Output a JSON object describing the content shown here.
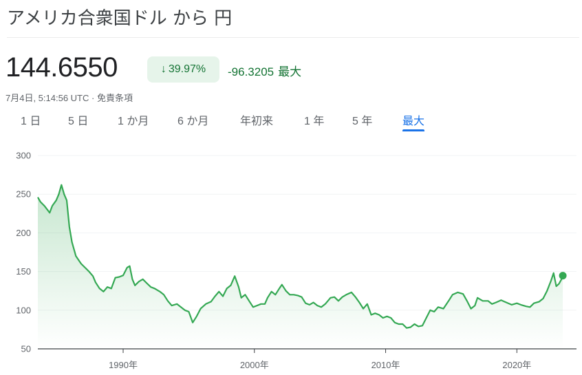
{
  "title": "アメリカ合衆国ドル から 円",
  "price": "144.6550",
  "change": {
    "arrow": "↓",
    "percent": "39.97%",
    "absolute": "-96.3205",
    "period": "最大"
  },
  "timestamp": "7月4日, 5:14:56 UTC · 免責条項",
  "tabs": [
    {
      "label": "1 日",
      "active": false
    },
    {
      "label": "5 日",
      "active": false
    },
    {
      "label": "1 か月",
      "active": false
    },
    {
      "label": "6 か月",
      "active": false
    },
    {
      "label": "年初来",
      "active": false
    },
    {
      "label": "1 年",
      "active": false
    },
    {
      "label": "5 年",
      "active": false
    },
    {
      "label": "最大",
      "active": true
    }
  ],
  "colors": {
    "line": "#34a853",
    "positive_text": "#137333",
    "badge_bg": "#e6f4ea",
    "active_tab": "#1a73e8"
  },
  "chart_data": {
    "type": "line",
    "title": "",
    "xlabel": "",
    "ylabel": "",
    "x_ticks": [
      {
        "year": 1990,
        "label": "1990年"
      },
      {
        "year": 2000,
        "label": "2000年"
      },
      {
        "year": 2010,
        "label": "2010年"
      },
      {
        "year": 2020,
        "label": "2020年"
      }
    ],
    "y_ticks": [
      300,
      250,
      200,
      150,
      100,
      50
    ],
    "xlim": [
      1983.5,
      2023.6
    ],
    "ylim": [
      50,
      300
    ],
    "grid": "horizontal",
    "series": [
      {
        "name": "",
        "points": [
          [
            1983.5,
            246
          ],
          [
            1983.7,
            240
          ],
          [
            1984.0,
            235
          ],
          [
            1984.4,
            226
          ],
          [
            1984.6,
            235
          ],
          [
            1984.9,
            242
          ],
          [
            1985.1,
            250
          ],
          [
            1985.3,
            262
          ],
          [
            1985.5,
            250
          ],
          [
            1985.7,
            242
          ],
          [
            1985.9,
            208
          ],
          [
            1986.1,
            188
          ],
          [
            1986.4,
            170
          ],
          [
            1986.8,
            160
          ],
          [
            1987.1,
            155
          ],
          [
            1987.4,
            150
          ],
          [
            1987.7,
            144
          ],
          [
            1987.9,
            136
          ],
          [
            1988.2,
            128
          ],
          [
            1988.5,
            124
          ],
          [
            1988.8,
            130
          ],
          [
            1989.1,
            128
          ],
          [
            1989.4,
            142
          ],
          [
            1989.7,
            143
          ],
          [
            1990.0,
            145
          ],
          [
            1990.3,
            155
          ],
          [
            1990.5,
            157
          ],
          [
            1990.7,
            140
          ],
          [
            1990.9,
            132
          ],
          [
            1991.2,
            137
          ],
          [
            1991.5,
            140
          ],
          [
            1991.8,
            135
          ],
          [
            1992.1,
            130
          ],
          [
            1992.4,
            128
          ],
          [
            1992.8,
            124
          ],
          [
            1993.1,
            120
          ],
          [
            1993.4,
            112
          ],
          [
            1993.7,
            106
          ],
          [
            1994.1,
            108
          ],
          [
            1994.4,
            104
          ],
          [
            1994.7,
            100
          ],
          [
            1995.0,
            98
          ],
          [
            1995.3,
            84
          ],
          [
            1995.6,
            92
          ],
          [
            1995.9,
            102
          ],
          [
            1996.3,
            108
          ],
          [
            1996.7,
            111
          ],
          [
            1997.0,
            118
          ],
          [
            1997.3,
            124
          ],
          [
            1997.6,
            118
          ],
          [
            1997.9,
            128
          ],
          [
            1998.2,
            132
          ],
          [
            1998.5,
            144
          ],
          [
            1998.8,
            130
          ],
          [
            1999.0,
            116
          ],
          [
            1999.3,
            120
          ],
          [
            1999.6,
            112
          ],
          [
            1999.9,
            104
          ],
          [
            2000.2,
            106
          ],
          [
            2000.5,
            108
          ],
          [
            2000.8,
            108
          ],
          [
            2001.0,
            116
          ],
          [
            2001.3,
            124
          ],
          [
            2001.6,
            120
          ],
          [
            2001.9,
            128
          ],
          [
            2002.1,
            133
          ],
          [
            2002.4,
            125
          ],
          [
            2002.7,
            120
          ],
          [
            2003.0,
            120
          ],
          [
            2003.3,
            119
          ],
          [
            2003.6,
            117
          ],
          [
            2003.9,
            109
          ],
          [
            2004.2,
            107
          ],
          [
            2004.5,
            110
          ],
          [
            2004.8,
            106
          ],
          [
            2005.1,
            104
          ],
          [
            2005.4,
            108
          ],
          [
            2005.8,
            116
          ],
          [
            2006.1,
            117
          ],
          [
            2006.4,
            112
          ],
          [
            2006.7,
            117
          ],
          [
            2007.0,
            120
          ],
          [
            2007.4,
            123
          ],
          [
            2007.7,
            117
          ],
          [
            2008.0,
            110
          ],
          [
            2008.3,
            102
          ],
          [
            2008.6,
            108
          ],
          [
            2008.9,
            94
          ],
          [
            2009.2,
            96
          ],
          [
            2009.5,
            94
          ],
          [
            2009.8,
            90
          ],
          [
            2010.1,
            92
          ],
          [
            2010.4,
            90
          ],
          [
            2010.7,
            84
          ],
          [
            2011.0,
            82
          ],
          [
            2011.3,
            82
          ],
          [
            2011.6,
            77
          ],
          [
            2011.9,
            78
          ],
          [
            2012.2,
            82
          ],
          [
            2012.5,
            79
          ],
          [
            2012.8,
            80
          ],
          [
            2013.1,
            90
          ],
          [
            2013.4,
            100
          ],
          [
            2013.7,
            98
          ],
          [
            2014.0,
            104
          ],
          [
            2014.4,
            102
          ],
          [
            2014.8,
            112
          ],
          [
            2015.1,
            120
          ],
          [
            2015.5,
            123
          ],
          [
            2015.9,
            121
          ],
          [
            2016.2,
            112
          ],
          [
            2016.5,
            102
          ],
          [
            2016.8,
            106
          ],
          [
            2017.0,
            116
          ],
          [
            2017.4,
            112
          ],
          [
            2017.8,
            112
          ],
          [
            2018.1,
            108
          ],
          [
            2018.4,
            110
          ],
          [
            2018.8,
            113
          ],
          [
            2019.2,
            110
          ],
          [
            2019.6,
            107
          ],
          [
            2020.0,
            109
          ],
          [
            2020.3,
            107
          ],
          [
            2020.7,
            105
          ],
          [
            2021.0,
            104
          ],
          [
            2021.3,
            109
          ],
          [
            2021.7,
            111
          ],
          [
            2022.0,
            115
          ],
          [
            2022.3,
            125
          ],
          [
            2022.6,
            138
          ],
          [
            2022.8,
            148
          ],
          [
            2023.0,
            131
          ],
          [
            2023.2,
            134
          ],
          [
            2023.4,
            140
          ],
          [
            2023.5,
            144.66
          ]
        ]
      }
    ]
  }
}
